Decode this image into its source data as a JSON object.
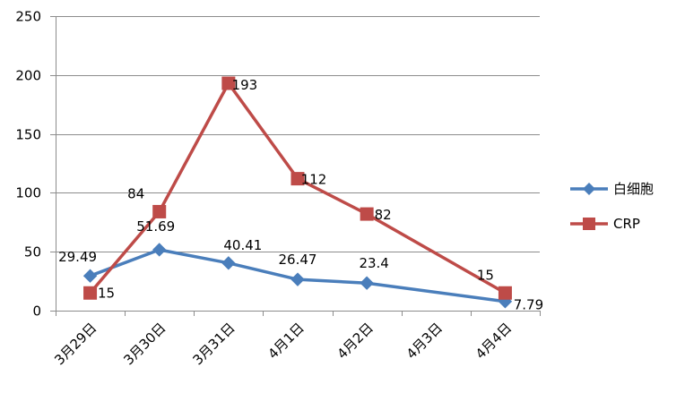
{
  "chart_data": {
    "type": "line",
    "categories": [
      "3月29日",
      "3月30日",
      "3月31日",
      "4月1日",
      "4月2日",
      "4月3日",
      "4月4日"
    ],
    "ylim": [
      0,
      250
    ],
    "yticks": [
      0,
      50,
      100,
      150,
      200,
      250
    ],
    "grid": "horizontal",
    "legend_position": "right",
    "series": [
      {
        "name": "白细胞",
        "color": "#4a7ebb",
        "marker": "diamond",
        "points": [
          {
            "category": "3月29日",
            "value": 29.49,
            "label": "29.49"
          },
          {
            "category": "3月30日",
            "value": 51.69,
            "label": "51.69"
          },
          {
            "category": "3月31日",
            "value": 40.41,
            "label": "40.41"
          },
          {
            "category": "4月1日",
            "value": 26.47,
            "label": "26.47"
          },
          {
            "category": "4月2日",
            "value": 23.4,
            "label": "23.4"
          },
          {
            "category": "4月4日",
            "value": 7.79,
            "label": "7.79"
          }
        ]
      },
      {
        "name": "CRP",
        "color": "#be4b48",
        "marker": "square",
        "points": [
          {
            "category": "3月29日",
            "value": 15,
            "label": "15"
          },
          {
            "category": "3月30日",
            "value": 84,
            "label": "84"
          },
          {
            "category": "3月31日",
            "value": 193,
            "label": "193"
          },
          {
            "category": "4月1日",
            "value": 112,
            "label": "112"
          },
          {
            "category": "4月2日",
            "value": 82,
            "label": "82"
          },
          {
            "category": "4月4日",
            "value": 15,
            "label": "15"
          }
        ]
      }
    ]
  }
}
